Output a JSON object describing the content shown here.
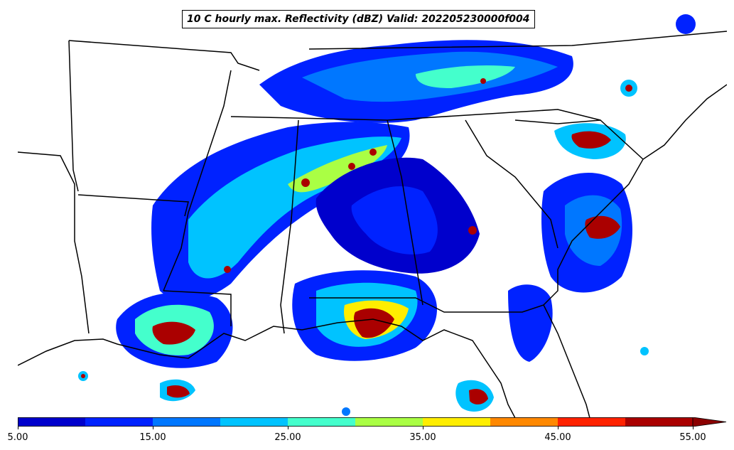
{
  "title": "10 C hourly max. Reflectivity (dBZ) Valid: 202205230000f004",
  "colorbar": {
    "ticks": [
      "5.00",
      "15.00",
      "25.00",
      "35.00",
      "45.00",
      "55.00"
    ],
    "tick_values": [
      5,
      15,
      25,
      35,
      45,
      55
    ],
    "bins": [
      5,
      10,
      15,
      20,
      25,
      30,
      35,
      40,
      45,
      50,
      55
    ],
    "colors": [
      "#0000cc",
      "#0022ff",
      "#0077ff",
      "#00c3ff",
      "#44ffcc",
      "#aaff44",
      "#ffee00",
      "#ff8800",
      "#ff2200",
      "#aa0000"
    ],
    "extend_color": "#8b0000",
    "extend": "max"
  },
  "map_colors": {
    "land": "#ffffff",
    "border": "#000000"
  }
}
